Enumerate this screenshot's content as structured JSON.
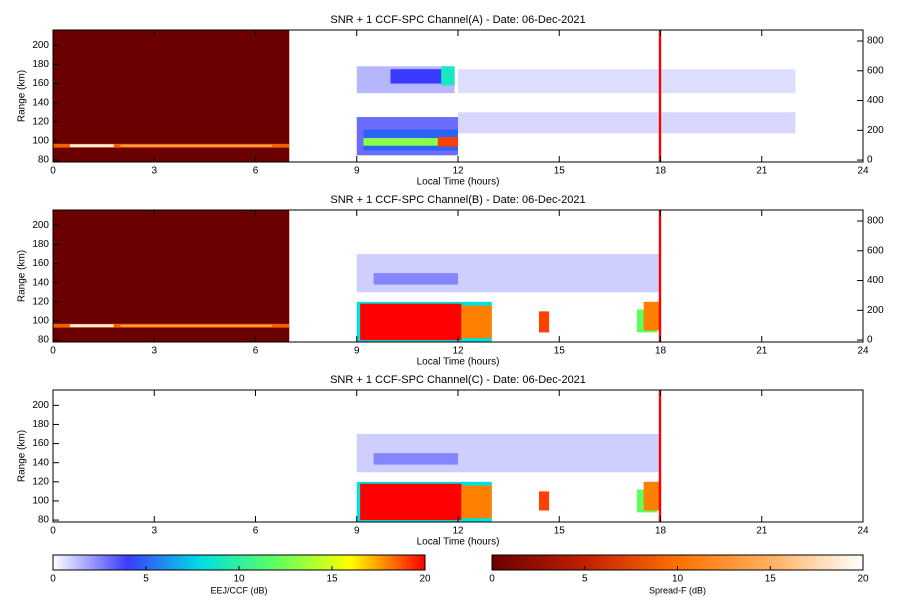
{
  "chart_data": [
    {
      "type": "heatmap",
      "title": "SNR + 1 CCF-SPC Channel(A) - Date: 06-Dec-2021",
      "xlabel": "Local Time (hours)",
      "ylabel": "Range (km)",
      "xlim": [
        0,
        24
      ],
      "xticks": [
        0,
        3,
        6,
        9,
        12,
        15,
        18,
        21,
        24
      ],
      "ylim": [
        78,
        216
      ],
      "yticks": [
        80,
        100,
        120,
        140,
        160,
        180,
        200
      ],
      "y2lim": [
        -13,
        874
      ],
      "y2ticks": [
        0,
        200,
        400,
        600,
        800
      ],
      "spreadf_regions": [
        {
          "x": [
            0,
            7
          ],
          "y": [
            78,
            216
          ],
          "value": 0
        },
        {
          "x": [
            0,
            7
          ],
          "y": [
            93,
            97
          ],
          "value": 9
        },
        {
          "x": [
            0.5,
            1.8
          ],
          "y": [
            93.5,
            96.5
          ],
          "value": 19
        },
        {
          "x": [
            2,
            6.5
          ],
          "y": [
            94,
            96
          ],
          "value": 14
        }
      ],
      "eej_regions": [
        {
          "x": [
            12,
            22
          ],
          "y": [
            150,
            175
          ],
          "value": 0.7
        },
        {
          "x": [
            12,
            22
          ],
          "y": [
            108,
            130
          ],
          "value": 0.8
        },
        {
          "x": [
            9,
            11.9
          ],
          "y": [
            150,
            178
          ],
          "value": 1.5
        },
        {
          "x": [
            10,
            11.6
          ],
          "y": [
            160,
            175
          ],
          "value": 4
        },
        {
          "x": [
            11.5,
            11.9
          ],
          "y": [
            158,
            178
          ],
          "value": 9
        },
        {
          "x": [
            9,
            12
          ],
          "y": [
            85,
            125
          ],
          "value": 3
        },
        {
          "x": [
            9.2,
            12
          ],
          "y": [
            90,
            112
          ],
          "value": 5
        },
        {
          "x": [
            9.2,
            12
          ],
          "y": [
            95,
            103
          ],
          "value": 13
        },
        {
          "x": [
            11.4,
            12
          ],
          "y": [
            94,
            104
          ],
          "value": 19
        },
        {
          "x": [
            17.95,
            18.02
          ],
          "y": [
            78,
            216
          ],
          "value": 20
        }
      ]
    },
    {
      "type": "heatmap",
      "title": "SNR + 1 CCF-SPC Channel(B) - Date: 06-Dec-2021",
      "xlabel": "Local Time (hours)",
      "ylabel": "Range (km)",
      "xlim": [
        0,
        24
      ],
      "xticks": [
        0,
        3,
        6,
        9,
        12,
        15,
        18,
        21,
        24
      ],
      "ylim": [
        78,
        216
      ],
      "yticks": [
        80,
        100,
        120,
        140,
        160,
        180,
        200
      ],
      "y2lim": [
        -13,
        874
      ],
      "y2ticks": [
        0,
        200,
        400,
        600,
        800
      ],
      "spreadf_regions": [
        {
          "x": [
            0,
            7
          ],
          "y": [
            78,
            216
          ],
          "value": 0
        },
        {
          "x": [
            0,
            7
          ],
          "y": [
            93,
            97
          ],
          "value": 9
        },
        {
          "x": [
            0.5,
            1.8
          ],
          "y": [
            93.5,
            96.5
          ],
          "value": 19
        },
        {
          "x": [
            2,
            6.5
          ],
          "y": [
            94,
            96
          ],
          "value": 14
        }
      ],
      "eej_regions": [
        {
          "x": [
            9,
            18
          ],
          "y": [
            130,
            170
          ],
          "value": 1
        },
        {
          "x": [
            9.5,
            12
          ],
          "y": [
            138,
            150
          ],
          "value": 2.5
        },
        {
          "x": [
            9,
            13
          ],
          "y": [
            78,
            120
          ],
          "value": 8
        },
        {
          "x": [
            9.1,
            12.1
          ],
          "y": [
            80,
            118
          ],
          "value": 20
        },
        {
          "x": [
            12.1,
            13
          ],
          "y": [
            82,
            116
          ],
          "value": 18
        },
        {
          "x": [
            14.4,
            14.7
          ],
          "y": [
            88,
            110
          ],
          "value": 19
        },
        {
          "x": [
            17.3,
            17.9
          ],
          "y": [
            88,
            112
          ],
          "value": 12
        },
        {
          "x": [
            17.5,
            18
          ],
          "y": [
            90,
            120
          ],
          "value": 18
        },
        {
          "x": [
            17.95,
            18.02
          ],
          "y": [
            78,
            216
          ],
          "value": 20
        }
      ]
    },
    {
      "type": "heatmap",
      "title": "SNR + 1 CCF-SPC Channel(C) - Date: 06-Dec-2021",
      "xlabel": "Local Time (hours)",
      "ylabel": "Range (km)",
      "xlim": [
        0,
        24
      ],
      "xticks": [
        0,
        3,
        6,
        9,
        12,
        15,
        18,
        21,
        24
      ],
      "ylim": [
        78,
        216
      ],
      "yticks": [
        80,
        100,
        120,
        140,
        160,
        180,
        200
      ],
      "spreadf_regions": [],
      "eej_regions": [
        {
          "x": [
            9,
            18
          ],
          "y": [
            130,
            170
          ],
          "value": 1
        },
        {
          "x": [
            9.5,
            12
          ],
          "y": [
            138,
            150
          ],
          "value": 2.5
        },
        {
          "x": [
            9,
            13
          ],
          "y": [
            78,
            120
          ],
          "value": 8
        },
        {
          "x": [
            9.1,
            12.1
          ],
          "y": [
            80,
            118
          ],
          "value": 20
        },
        {
          "x": [
            12.1,
            13
          ],
          "y": [
            82,
            116
          ],
          "value": 18
        },
        {
          "x": [
            14.4,
            14.7
          ],
          "y": [
            90,
            110
          ],
          "value": 19
        },
        {
          "x": [
            17.3,
            17.9
          ],
          "y": [
            88,
            112
          ],
          "value": 12
        },
        {
          "x": [
            17.5,
            18
          ],
          "y": [
            90,
            120
          ],
          "value": 18
        },
        {
          "x": [
            17.95,
            18.02
          ],
          "y": [
            78,
            216
          ],
          "value": 20
        }
      ]
    }
  ],
  "colorbars": [
    {
      "label": "EEJ/CCF (dB)",
      "lim": [
        0,
        20
      ],
      "ticks": [
        0,
        5,
        10,
        15,
        20
      ],
      "colors": [
        "#ffffff",
        "#3b3bff",
        "#00e0e0",
        "#60ff60",
        "#ffff00",
        "#ff0000"
      ]
    },
    {
      "label": "Spread-F (dB)",
      "lim": [
        0,
        20
      ],
      "ticks": [
        0,
        5,
        10,
        15,
        20
      ],
      "colors": [
        "#6b0000",
        "#c02000",
        "#ff7000",
        "#ffb060",
        "#ffffff"
      ]
    }
  ]
}
